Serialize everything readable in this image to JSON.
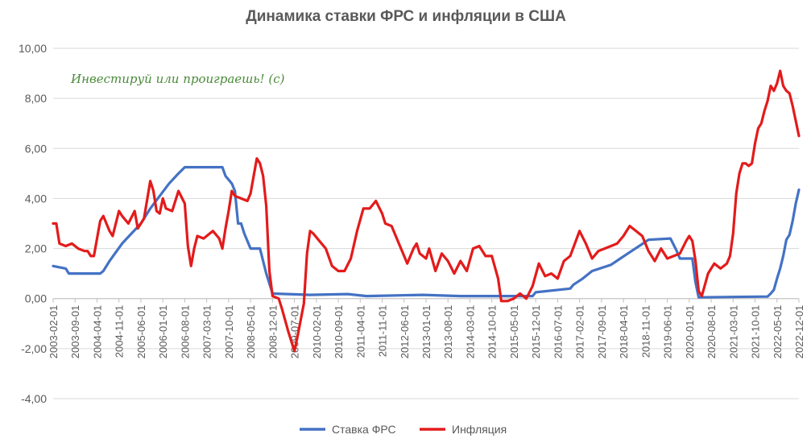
{
  "chart_data": {
    "type": "line",
    "title": "Динамика ставки ФРС и инфляции в США",
    "annotation": "Инвестируй или проиграешь! (с)",
    "xlabel": "",
    "ylabel": "",
    "ylim": [
      -4,
      10
    ],
    "yticks": [
      "10,00",
      "8,00",
      "6,00",
      "4,00",
      "2,00",
      "0,00",
      "-2,00",
      "-4,00"
    ],
    "x_start": "2003-02",
    "x_end": "2022-12",
    "xticks": [
      "2003-02-01",
      "2003-09-01",
      "2004-04-01",
      "2004-11-01",
      "2005-06-01",
      "2006-01-01",
      "2006-08-01",
      "2007-03-01",
      "2007-10-01",
      "2008-05-01",
      "2008-12-01",
      "2009-07-01",
      "2010-02-01",
      "2010-09-01",
      "2011-04-01",
      "2011-11-01",
      "2012-06-01",
      "2013-01-01",
      "2013-08-01",
      "2014-03-01",
      "2014-10-01",
      "2015-05-01",
      "2015-12-01",
      "2016-07-01",
      "2017-02-01",
      "2017-09-01",
      "2018-04-01",
      "2018-11-01",
      "2019-06-01",
      "2020-01-01",
      "2020-08-01",
      "2021-03-01",
      "2021-10-01",
      "2022-05-01",
      "2022-12-01"
    ],
    "grid": "horizontal",
    "legend_position": "bottom",
    "series": [
      {
        "name": "Ставка ФРС",
        "color": "#4472c4",
        "points": [
          [
            "2003-02",
            1.3
          ],
          [
            "2003-06",
            1.2
          ],
          [
            "2003-07",
            1.0
          ],
          [
            "2004-05",
            1.0
          ],
          [
            "2004-06",
            1.1
          ],
          [
            "2004-08",
            1.5
          ],
          [
            "2004-12",
            2.2
          ],
          [
            "2005-03",
            2.6
          ],
          [
            "2005-06",
            3.0
          ],
          [
            "2005-09",
            3.6
          ],
          [
            "2005-12",
            4.1
          ],
          [
            "2006-03",
            4.6
          ],
          [
            "2006-06",
            5.0
          ],
          [
            "2006-08",
            5.25
          ],
          [
            "2007-08",
            5.25
          ],
          [
            "2007-09",
            4.9
          ],
          [
            "2007-11",
            4.6
          ],
          [
            "2007-12",
            4.3
          ],
          [
            "2008-01",
            3.0
          ],
          [
            "2008-02",
            3.0
          ],
          [
            "2008-03",
            2.6
          ],
          [
            "2008-04",
            2.3
          ],
          [
            "2008-05",
            2.0
          ],
          [
            "2008-08",
            2.0
          ],
          [
            "2008-10",
            1.0
          ],
          [
            "2008-12",
            0.2
          ],
          [
            "2009-12",
            0.15
          ],
          [
            "2010-12",
            0.18
          ],
          [
            "2011-06",
            0.1
          ],
          [
            "2012-12",
            0.15
          ],
          [
            "2013-12",
            0.1
          ],
          [
            "2015-11",
            0.1
          ],
          [
            "2015-12",
            0.25
          ],
          [
            "2016-11",
            0.4
          ],
          [
            "2016-12",
            0.55
          ],
          [
            "2017-03",
            0.8
          ],
          [
            "2017-06",
            1.1
          ],
          [
            "2017-12",
            1.35
          ],
          [
            "2018-03",
            1.6
          ],
          [
            "2018-06",
            1.85
          ],
          [
            "2018-09",
            2.1
          ],
          [
            "2018-12",
            2.35
          ],
          [
            "2019-07",
            2.4
          ],
          [
            "2019-08",
            2.15
          ],
          [
            "2019-09",
            1.9
          ],
          [
            "2019-10",
            1.6
          ],
          [
            "2020-02",
            1.6
          ],
          [
            "2020-03",
            0.65
          ],
          [
            "2020-04",
            0.05
          ],
          [
            "2022-02",
            0.08
          ],
          [
            "2022-03",
            0.2
          ],
          [
            "2022-04",
            0.35
          ],
          [
            "2022-05",
            0.8
          ],
          [
            "2022-06",
            1.2
          ],
          [
            "2022-07",
            1.7
          ],
          [
            "2022-08",
            2.35
          ],
          [
            "2022-09",
            2.55
          ],
          [
            "2022-10",
            3.1
          ],
          [
            "2022-11",
            3.8
          ],
          [
            "2022-12",
            4.35
          ]
        ]
      },
      {
        "name": "Инфляция",
        "color": "#e31b1b",
        "points": [
          [
            "2003-02",
            3.0
          ],
          [
            "2003-03",
            3.0
          ],
          [
            "2003-04",
            2.2
          ],
          [
            "2003-06",
            2.1
          ],
          [
            "2003-08",
            2.2
          ],
          [
            "2003-10",
            2.0
          ],
          [
            "2003-12",
            1.9
          ],
          [
            "2004-01",
            1.9
          ],
          [
            "2004-02",
            1.7
          ],
          [
            "2004-03",
            1.7
          ],
          [
            "2004-05",
            3.1
          ],
          [
            "2004-06",
            3.3
          ],
          [
            "2004-08",
            2.7
          ],
          [
            "2004-09",
            2.5
          ],
          [
            "2004-11",
            3.5
          ],
          [
            "2004-12",
            3.3
          ],
          [
            "2005-02",
            3.0
          ],
          [
            "2005-04",
            3.5
          ],
          [
            "2005-05",
            2.8
          ],
          [
            "2005-07",
            3.2
          ],
          [
            "2005-09",
            4.7
          ],
          [
            "2005-10",
            4.3
          ],
          [
            "2005-11",
            3.5
          ],
          [
            "2005-12",
            3.4
          ],
          [
            "2006-01",
            4.0
          ],
          [
            "2006-02",
            3.6
          ],
          [
            "2006-04",
            3.5
          ],
          [
            "2006-06",
            4.3
          ],
          [
            "2006-08",
            3.8
          ],
          [
            "2006-09",
            2.1
          ],
          [
            "2006-10",
            1.3
          ],
          [
            "2006-11",
            2.0
          ],
          [
            "2006-12",
            2.5
          ],
          [
            "2007-02",
            2.4
          ],
          [
            "2007-04",
            2.6
          ],
          [
            "2007-05",
            2.7
          ],
          [
            "2007-07",
            2.4
          ],
          [
            "2007-08",
            2.0
          ],
          [
            "2007-09",
            2.8
          ],
          [
            "2007-10",
            3.5
          ],
          [
            "2007-11",
            4.3
          ],
          [
            "2007-12",
            4.1
          ],
          [
            "2008-02",
            4.0
          ],
          [
            "2008-04",
            3.9
          ],
          [
            "2008-05",
            4.2
          ],
          [
            "2008-07",
            5.6
          ],
          [
            "2008-08",
            5.4
          ],
          [
            "2008-09",
            4.9
          ],
          [
            "2008-10",
            3.7
          ],
          [
            "2008-11",
            1.1
          ],
          [
            "2008-12",
            0.1
          ],
          [
            "2009-02",
            0.0
          ],
          [
            "2009-03",
            -0.4
          ],
          [
            "2009-05",
            -1.3
          ],
          [
            "2009-07",
            -2.1
          ],
          [
            "2009-08",
            -1.5
          ],
          [
            "2009-10",
            -0.2
          ],
          [
            "2009-11",
            1.8
          ],
          [
            "2009-12",
            2.7
          ],
          [
            "2010-01",
            2.6
          ],
          [
            "2010-03",
            2.3
          ],
          [
            "2010-05",
            2.0
          ],
          [
            "2010-07",
            1.3
          ],
          [
            "2010-09",
            1.1
          ],
          [
            "2010-11",
            1.1
          ],
          [
            "2011-01",
            1.6
          ],
          [
            "2011-03",
            2.7
          ],
          [
            "2011-05",
            3.6
          ],
          [
            "2011-07",
            3.6
          ],
          [
            "2011-09",
            3.9
          ],
          [
            "2011-11",
            3.4
          ],
          [
            "2011-12",
            3.0
          ],
          [
            "2012-02",
            2.9
          ],
          [
            "2012-04",
            2.3
          ],
          [
            "2012-06",
            1.7
          ],
          [
            "2012-07",
            1.4
          ],
          [
            "2012-09",
            2.0
          ],
          [
            "2012-10",
            2.2
          ],
          [
            "2012-11",
            1.8
          ],
          [
            "2013-01",
            1.6
          ],
          [
            "2013-02",
            2.0
          ],
          [
            "2013-04",
            1.1
          ],
          [
            "2013-06",
            1.8
          ],
          [
            "2013-08",
            1.5
          ],
          [
            "2013-10",
            1.0
          ],
          [
            "2013-12",
            1.5
          ],
          [
            "2014-02",
            1.1
          ],
          [
            "2014-04",
            2.0
          ],
          [
            "2014-06",
            2.1
          ],
          [
            "2014-08",
            1.7
          ],
          [
            "2014-10",
            1.7
          ],
          [
            "2014-12",
            0.8
          ],
          [
            "2015-01",
            -0.1
          ],
          [
            "2015-03",
            -0.1
          ],
          [
            "2015-05",
            0.0
          ],
          [
            "2015-07",
            0.2
          ],
          [
            "2015-09",
            0.0
          ],
          [
            "2015-11",
            0.5
          ],
          [
            "2016-01",
            1.4
          ],
          [
            "2016-03",
            0.9
          ],
          [
            "2016-05",
            1.0
          ],
          [
            "2016-07",
            0.8
          ],
          [
            "2016-09",
            1.5
          ],
          [
            "2016-11",
            1.7
          ],
          [
            "2017-02",
            2.7
          ],
          [
            "2017-04",
            2.2
          ],
          [
            "2017-06",
            1.6
          ],
          [
            "2017-08",
            1.9
          ],
          [
            "2017-10",
            2.0
          ],
          [
            "2017-12",
            2.1
          ],
          [
            "2018-02",
            2.2
          ],
          [
            "2018-04",
            2.5
          ],
          [
            "2018-06",
            2.9
          ],
          [
            "2018-08",
            2.7
          ],
          [
            "2018-10",
            2.5
          ],
          [
            "2018-12",
            1.9
          ],
          [
            "2019-02",
            1.5
          ],
          [
            "2019-04",
            2.0
          ],
          [
            "2019-06",
            1.6
          ],
          [
            "2019-08",
            1.7
          ],
          [
            "2019-10",
            1.8
          ],
          [
            "2019-12",
            2.3
          ],
          [
            "2020-01",
            2.5
          ],
          [
            "2020-02",
            2.3
          ],
          [
            "2020-03",
            1.5
          ],
          [
            "2020-04",
            0.3
          ],
          [
            "2020-05",
            0.1
          ],
          [
            "2020-07",
            1.0
          ],
          [
            "2020-09",
            1.4
          ],
          [
            "2020-11",
            1.2
          ],
          [
            "2021-01",
            1.4
          ],
          [
            "2021-02",
            1.7
          ],
          [
            "2021-03",
            2.6
          ],
          [
            "2021-04",
            4.2
          ],
          [
            "2021-05",
            5.0
          ],
          [
            "2021-06",
            5.4
          ],
          [
            "2021-07",
            5.4
          ],
          [
            "2021-08",
            5.3
          ],
          [
            "2021-09",
            5.4
          ],
          [
            "2021-10",
            6.2
          ],
          [
            "2021-11",
            6.8
          ],
          [
            "2021-12",
            7.0
          ],
          [
            "2022-01",
            7.5
          ],
          [
            "2022-02",
            7.9
          ],
          [
            "2022-03",
            8.5
          ],
          [
            "2022-04",
            8.3
          ],
          [
            "2022-05",
            8.6
          ],
          [
            "2022-06",
            9.1
          ],
          [
            "2022-07",
            8.5
          ],
          [
            "2022-08",
            8.3
          ],
          [
            "2022-09",
            8.2
          ],
          [
            "2022-10",
            7.7
          ],
          [
            "2022-11",
            7.1
          ],
          [
            "2022-12",
            6.5
          ]
        ]
      }
    ]
  }
}
